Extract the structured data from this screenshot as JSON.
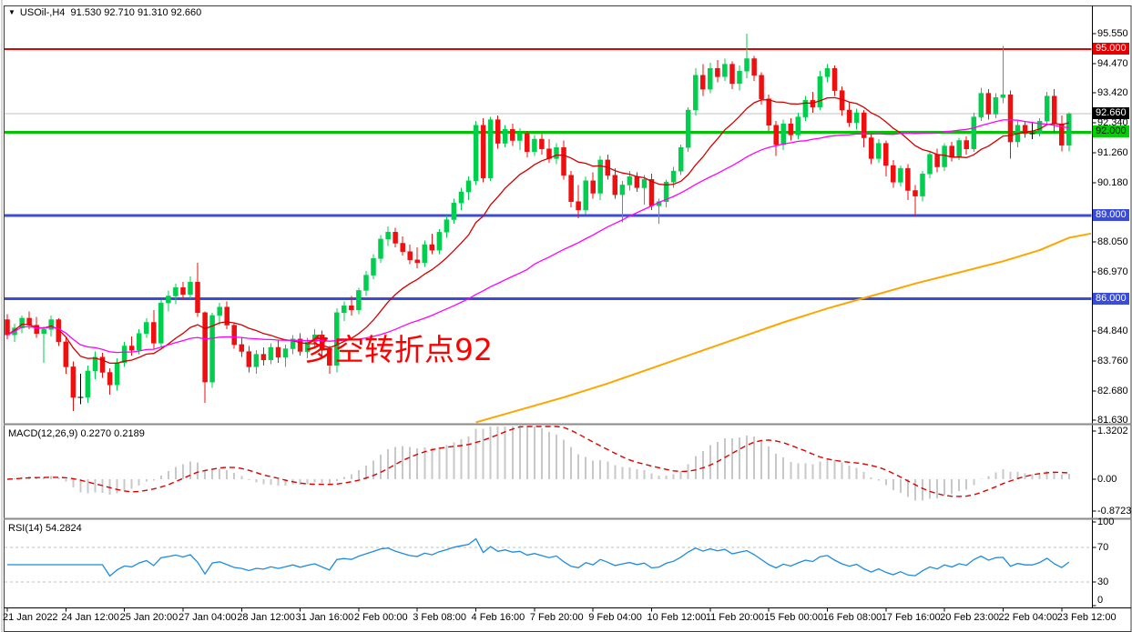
{
  "window": {
    "title": "USOil-,H4  91.530 92.710 91.310 92.660",
    "symbol": "USOil",
    "timeframe": "H4",
    "dropdown_icon": "symbol-dropdown"
  },
  "annotation": {
    "text": "多空转折点92",
    "color": "#ff0000"
  },
  "macd_panel": {
    "label": "MACD(12,26,9) 0.2270 0.2189",
    "params": "12,26,9",
    "main_value": "0.2270",
    "signal_value": "0.2189",
    "ticks": [
      {
        "label": "1.3202",
        "v": 1.3202
      },
      {
        "label": "0.00",
        "v": 0
      },
      {
        "label": "-0.8723",
        "v": -0.8723
      }
    ]
  },
  "rsi_panel": {
    "label": "RSI(14) 54.2824",
    "period": "14",
    "value": "54.2824",
    "ticks": [
      {
        "label": "100",
        "v": 100
      },
      {
        "label": "70",
        "v": 70
      },
      {
        "label": "30",
        "v": 30
      },
      {
        "label": "0",
        "v": 0
      }
    ],
    "dashed_levels": [
      70,
      30
    ]
  },
  "main_panel": {
    "price_ticks": [
      "95.550",
      "94.470",
      "93.420",
      "92.340",
      "91.260",
      "90.180",
      "88.050",
      "86.970",
      "84.840",
      "83.760",
      "82.680",
      "81.630"
    ],
    "badges": [
      {
        "text": "95.000",
        "price": 95.0,
        "bg": "#e80000",
        "fg": "#ffffff"
      },
      {
        "text": "92.660",
        "price": 92.66,
        "bg": "#000000",
        "fg": "#ffffff"
      },
      {
        "text": "92.000",
        "price": 92.0,
        "bg": "#00d000",
        "fg": "#000000"
      },
      {
        "text": "89.000",
        "price": 89.0,
        "bg": "#3b4cdb",
        "fg": "#ffffff"
      },
      {
        "text": "86.000",
        "price": 86.0,
        "bg": "#3b4cdb",
        "fg": "#ffffff"
      }
    ]
  },
  "colors": {
    "candle_up": "#00cf4e",
    "candle_down": "#ef0f0f",
    "candle_doji": "#000000",
    "ma_fast": "#d40000",
    "ma_mid": "#ff00ff",
    "ma_long": "#ffa500",
    "level_red": "#e80000",
    "level_green": "#00c400",
    "level_blue": "#3b4cdb",
    "bid_line": "#c0c0c0",
    "macd_hist": "#c8c8c8",
    "macd_signal": "#dd0000",
    "rsi_line": "#1b8ce0",
    "rsi_levels": "#c0c0c0"
  },
  "chart_data": {
    "type": "candlestick",
    "symbol": "USOil",
    "timeframe": "H4",
    "current_bar": {
      "open": 91.53,
      "high": 92.71,
      "low": 91.31,
      "close": 92.66
    },
    "ylim": [
      81.3,
      96.5
    ],
    "levels": [
      {
        "price": 95.0,
        "color_key": "level_red",
        "width": 2
      },
      {
        "price": 92.0,
        "color_key": "level_green",
        "width": 3
      },
      {
        "price": 89.0,
        "color_key": "level_blue",
        "width": 3
      },
      {
        "price": 86.0,
        "color_key": "level_blue",
        "width": 3
      }
    ],
    "bid_price": 92.66,
    "x_labels": [
      "21 Jan 2022",
      "24 Jan 12:00",
      "25 Jan 20:00",
      "27 Jan 04:00",
      "28 Jan 12:00",
      "31 Jan 16:00",
      "2 Feb 00:00",
      "3 Feb 08:00",
      "4 Feb 16:00",
      "7 Feb 20:00",
      "9 Feb 04:00",
      "10 Feb 12:00",
      "11 Feb 20:00",
      "15 Feb 00:00",
      "16 Feb 08:00",
      "17 Feb 16:00",
      "20 Feb 23:00",
      "22 Feb 04:00",
      "23 Feb 12:00"
    ],
    "x_label_step": 8,
    "overlays": [
      {
        "name": "ma-fast",
        "method": "lwma",
        "period": 20,
        "color_key": "ma_fast"
      },
      {
        "name": "ma-mid",
        "method": "sma",
        "period": 45,
        "color_key": "ma_mid"
      }
    ],
    "ma_long_points": [
      [
        64,
        81.55
      ],
      [
        70,
        82.0
      ],
      [
        76,
        82.45
      ],
      [
        82,
        82.95
      ],
      [
        88,
        83.5
      ],
      [
        94,
        84.05
      ],
      [
        100,
        84.6
      ],
      [
        106,
        85.15
      ],
      [
        112,
        85.65
      ],
      [
        118,
        86.1
      ],
      [
        124,
        86.55
      ],
      [
        130,
        86.95
      ],
      [
        136,
        87.35
      ],
      [
        141,
        87.75
      ],
      [
        145,
        88.2
      ],
      [
        148,
        88.35
      ]
    ],
    "indicators": {
      "macd": {
        "fast": 12,
        "slow": 26,
        "signal": 9
      },
      "rsi": {
        "period": 14
      }
    },
    "candles": [
      [
        85.25,
        85.45,
        84.55,
        84.7
      ],
      [
        84.7,
        85.1,
        84.45,
        84.95
      ],
      [
        84.95,
        85.4,
        84.75,
        85.3
      ],
      [
        85.3,
        85.55,
        84.9,
        85.05
      ],
      [
        85.05,
        85.35,
        84.6,
        84.75
      ],
      [
        84.75,
        85.0,
        83.7,
        84.9
      ],
      [
        84.9,
        85.4,
        84.65,
        85.25
      ],
      [
        85.25,
        85.3,
        84.3,
        84.45
      ],
      [
        84.45,
        84.6,
        83.3,
        83.55
      ],
      [
        83.55,
        83.75,
        81.95,
        82.45
      ],
      [
        82.45,
        83.3,
        82.2,
        82.45
      ],
      [
        82.45,
        83.6,
        82.25,
        83.4
      ],
      [
        83.4,
        84.1,
        83.1,
        83.9
      ],
      [
        83.9,
        84.05,
        83.15,
        83.35
      ],
      [
        83.35,
        83.5,
        82.55,
        82.9
      ],
      [
        82.9,
        83.85,
        82.7,
        83.7
      ],
      [
        83.7,
        84.45,
        83.55,
        84.3
      ],
      [
        84.3,
        84.65,
        83.95,
        84.15
      ],
      [
        84.15,
        84.9,
        84.0,
        84.75
      ],
      [
        84.75,
        85.3,
        84.6,
        85.15
      ],
      [
        85.15,
        85.6,
        84.2,
        84.4
      ],
      [
        84.4,
        85.95,
        84.25,
        85.85
      ],
      [
        85.85,
        86.3,
        85.55,
        86.1
      ],
      [
        86.1,
        86.55,
        85.8,
        86.4
      ],
      [
        86.4,
        86.6,
        85.95,
        86.15
      ],
      [
        86.15,
        86.8,
        86.0,
        86.6
      ],
      [
        86.6,
        87.3,
        85.35,
        85.5
      ],
      [
        85.5,
        85.55,
        82.25,
        83.0
      ],
      [
        83.0,
        85.5,
        82.8,
        85.4
      ],
      [
        85.4,
        85.85,
        85.05,
        85.7
      ],
      [
        85.7,
        85.9,
        84.9,
        85.05
      ],
      [
        85.05,
        85.15,
        84.2,
        84.35
      ],
      [
        84.35,
        84.6,
        83.9,
        84.1
      ],
      [
        84.1,
        84.3,
        83.35,
        83.55
      ],
      [
        83.55,
        84.15,
        83.3,
        84.0
      ],
      [
        84.0,
        84.25,
        83.6,
        83.8
      ],
      [
        83.8,
        84.4,
        83.65,
        84.25
      ],
      [
        84.25,
        84.5,
        83.7,
        83.9
      ],
      [
        83.9,
        84.35,
        83.55,
        84.2
      ],
      [
        84.2,
        84.7,
        84.0,
        84.55
      ],
      [
        84.55,
        84.75,
        83.95,
        84.1
      ],
      [
        84.1,
        84.6,
        83.85,
        84.45
      ],
      [
        84.45,
        84.9,
        84.2,
        84.7
      ],
      [
        84.7,
        84.85,
        83.95,
        84.15
      ],
      [
        84.15,
        84.3,
        83.3,
        83.6
      ],
      [
        83.6,
        85.65,
        83.35,
        85.5
      ],
      [
        85.5,
        85.9,
        85.2,
        85.75
      ],
      [
        85.75,
        86.1,
        85.4,
        85.6
      ],
      [
        85.6,
        86.4,
        85.45,
        86.3
      ],
      [
        86.3,
        87.0,
        86.1,
        86.85
      ],
      [
        86.85,
        87.6,
        86.7,
        87.45
      ],
      [
        87.45,
        88.3,
        87.3,
        88.15
      ],
      [
        88.15,
        88.6,
        87.9,
        88.4
      ],
      [
        88.4,
        88.55,
        87.85,
        88.0
      ],
      [
        88.0,
        88.25,
        87.55,
        87.7
      ],
      [
        87.7,
        87.95,
        87.25,
        87.4
      ],
      [
        87.4,
        87.85,
        87.1,
        87.3
      ],
      [
        87.3,
        88.1,
        87.15,
        87.95
      ],
      [
        87.95,
        88.35,
        87.6,
        87.75
      ],
      [
        87.75,
        88.5,
        87.6,
        88.4
      ],
      [
        88.4,
        89.0,
        88.2,
        88.85
      ],
      [
        88.85,
        89.6,
        88.7,
        89.45
      ],
      [
        89.45,
        90.0,
        89.2,
        89.85
      ],
      [
        89.85,
        90.4,
        89.55,
        90.25
      ],
      [
        90.25,
        92.4,
        90.1,
        92.25
      ],
      [
        92.25,
        92.5,
        90.2,
        90.35
      ],
      [
        90.35,
        92.55,
        90.25,
        92.45
      ],
      [
        92.45,
        92.6,
        91.4,
        91.6
      ],
      [
        91.6,
        92.25,
        91.45,
        92.1
      ],
      [
        92.1,
        92.3,
        91.5,
        91.7
      ],
      [
        91.7,
        92.15,
        91.35,
        91.95
      ],
      [
        91.95,
        92.05,
        91.1,
        91.3
      ],
      [
        91.3,
        91.9,
        91.15,
        91.75
      ],
      [
        91.75,
        91.95,
        91.2,
        91.4
      ],
      [
        91.4,
        91.75,
        90.9,
        91.05
      ],
      [
        91.05,
        91.6,
        90.85,
        91.45
      ],
      [
        91.45,
        91.7,
        90.3,
        90.45
      ],
      [
        90.45,
        90.6,
        89.3,
        89.5
      ],
      [
        89.5,
        90.1,
        88.9,
        89.2
      ],
      [
        89.2,
        90.4,
        89.05,
        90.25
      ],
      [
        90.25,
        90.55,
        89.6,
        89.8
      ],
      [
        89.8,
        91.15,
        89.55,
        91.0
      ],
      [
        91.0,
        91.2,
        90.3,
        90.45
      ],
      [
        90.45,
        90.7,
        89.6,
        89.75
      ],
      [
        89.75,
        90.25,
        88.75,
        90.1
      ],
      [
        90.1,
        90.6,
        89.9,
        90.4
      ],
      [
        90.4,
        90.55,
        89.85,
        90.0
      ],
      [
        90.0,
        90.45,
        89.4,
        90.3
      ],
      [
        90.3,
        90.5,
        89.2,
        89.35
      ],
      [
        89.35,
        89.6,
        88.7,
        89.5
      ],
      [
        89.5,
        90.3,
        89.3,
        90.2
      ],
      [
        90.2,
        90.75,
        90.0,
        90.6
      ],
      [
        90.6,
        91.55,
        90.45,
        91.45
      ],
      [
        91.45,
        92.9,
        91.3,
        92.8
      ],
      [
        92.8,
        94.3,
        92.6,
        94.05
      ],
      [
        94.05,
        94.45,
        93.3,
        93.55
      ],
      [
        93.55,
        94.5,
        93.4,
        94.3
      ],
      [
        94.3,
        94.6,
        93.8,
        94.0
      ],
      [
        94.0,
        94.65,
        93.85,
        94.45
      ],
      [
        94.45,
        94.55,
        93.55,
        93.75
      ],
      [
        93.75,
        94.4,
        93.5,
        94.2
      ],
      [
        94.2,
        95.55,
        93.95,
        94.65
      ],
      [
        94.65,
        94.75,
        93.85,
        94.05
      ],
      [
        94.05,
        94.15,
        93.0,
        93.2
      ],
      [
        93.2,
        93.35,
        92.05,
        92.25
      ],
      [
        92.25,
        92.4,
        91.15,
        91.55
      ],
      [
        91.55,
        92.45,
        91.35,
        92.3
      ],
      [
        92.3,
        92.5,
        91.7,
        91.9
      ],
      [
        91.9,
        92.7,
        91.75,
        92.55
      ],
      [
        92.55,
        93.3,
        92.4,
        93.15
      ],
      [
        93.15,
        93.45,
        92.7,
        92.9
      ],
      [
        92.9,
        94.2,
        92.8,
        94.0
      ],
      [
        94.0,
        94.45,
        93.8,
        94.3
      ],
      [
        94.3,
        94.4,
        93.3,
        93.5
      ],
      [
        93.5,
        93.65,
        92.6,
        92.8
      ],
      [
        92.8,
        93.1,
        92.2,
        92.35
      ],
      [
        92.35,
        92.85,
        92.1,
        92.7
      ],
      [
        92.7,
        92.8,
        91.45,
        91.8
      ],
      [
        91.8,
        91.95,
        90.85,
        91.05
      ],
      [
        91.05,
        91.75,
        90.9,
        91.6
      ],
      [
        91.6,
        91.7,
        90.4,
        90.8
      ],
      [
        90.8,
        91.0,
        90.0,
        90.2
      ],
      [
        90.2,
        90.8,
        90.05,
        90.7
      ],
      [
        90.7,
        90.85,
        89.55,
        89.9
      ],
      [
        89.9,
        90.1,
        88.95,
        89.7
      ],
      [
        89.7,
        90.6,
        89.5,
        90.5
      ],
      [
        90.5,
        91.3,
        90.35,
        91.2
      ],
      [
        91.2,
        91.4,
        90.55,
        90.75
      ],
      [
        90.75,
        91.6,
        90.6,
        91.5
      ],
      [
        91.5,
        91.65,
        90.95,
        91.1
      ],
      [
        91.1,
        91.8,
        91.0,
        91.7
      ],
      [
        91.7,
        91.85,
        91.2,
        91.4
      ],
      [
        91.4,
        92.7,
        91.3,
        92.55
      ],
      [
        92.55,
        93.6,
        92.4,
        93.4
      ],
      [
        93.4,
        93.55,
        92.45,
        92.65
      ],
      [
        92.65,
        93.4,
        92.5,
        93.25
      ],
      [
        93.25,
        95.1,
        93.05,
        93.35
      ],
      [
        93.35,
        93.5,
        91.05,
        91.65
      ],
      [
        91.65,
        92.4,
        91.45,
        92.25
      ],
      [
        92.25,
        92.4,
        91.8,
        91.95
      ],
      [
        91.95,
        92.35,
        91.75,
        91.95
      ],
      [
        91.95,
        92.5,
        91.85,
        92.4
      ],
      [
        92.4,
        93.45,
        92.3,
        93.3
      ],
      [
        93.3,
        93.55,
        92.0,
        92.3
      ],
      [
        92.3,
        92.6,
        91.31,
        91.53
      ],
      [
        91.53,
        92.71,
        91.31,
        92.66
      ]
    ]
  }
}
